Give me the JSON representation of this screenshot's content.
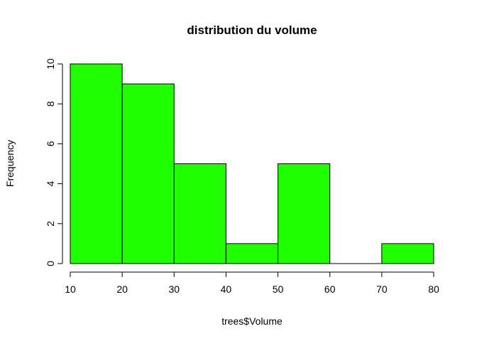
{
  "chart_data": {
    "type": "bar",
    "title": "distribution du volume",
    "xlabel": "trees$Volume",
    "ylabel": "Frequency",
    "bin_edges": [
      10,
      20,
      30,
      40,
      50,
      60,
      70,
      80
    ],
    "values": [
      10,
      9,
      5,
      1,
      5,
      0,
      1
    ],
    "xlim": [
      10,
      80
    ],
    "ylim": [
      0,
      10
    ],
    "x_ticks": [
      "10",
      "20",
      "30",
      "40",
      "50",
      "60",
      "70",
      "80"
    ],
    "y_ticks": [
      "0",
      "2",
      "4",
      "6",
      "8",
      "10"
    ],
    "bar_color": "#1fff00",
    "border_color": "#000000",
    "grid": false
  }
}
